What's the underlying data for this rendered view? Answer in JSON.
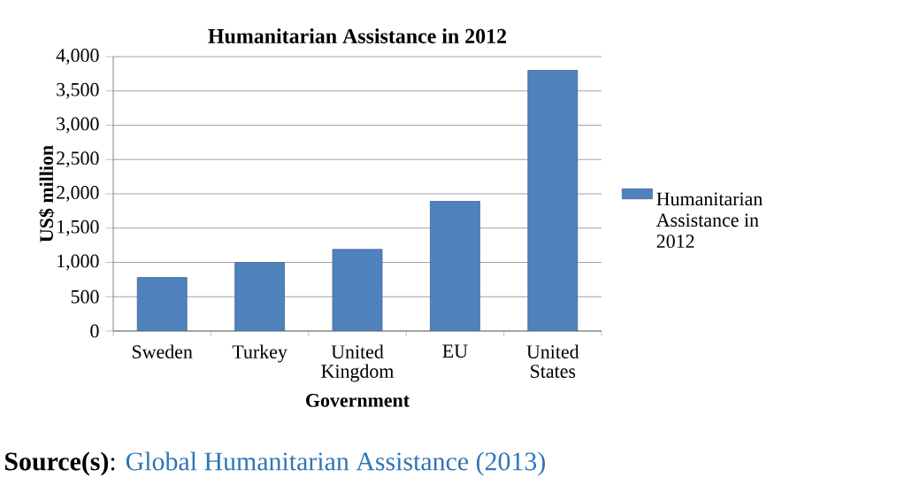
{
  "chart_data": {
    "type": "bar",
    "title": "Humanitarian Assistance in 2012",
    "xlabel": "Government",
    "ylabel": "US$ million",
    "categories": [
      "Sweden",
      "Turkey",
      "United Kingdom",
      "EU",
      "United States"
    ],
    "series": [
      {
        "name": "Humanitarian Assistance in 2012",
        "color": "#4f81bd",
        "values": [
          780,
          1000,
          1190,
          1890,
          3800
        ]
      }
    ],
    "ylim": [
      0,
      4000
    ],
    "yticks": [
      0,
      500,
      {
        "value": 1000,
        "label": "1,000"
      },
      {
        "value": 1500,
        "label": "1,500"
      },
      {
        "value": 2000,
        "label": "2,000"
      },
      {
        "value": 2500,
        "label": "2,500"
      },
      {
        "value": 3000,
        "label": "3,000"
      },
      {
        "value": 3500,
        "label": "3,500"
      },
      {
        "value": 4000,
        "label": "4,000"
      }
    ],
    "grid": "y",
    "legend": "right",
    "annotations": [
      "**Source(s)**:",
      "Global Humanitarian Assistance (2013)"
    ]
  }
}
